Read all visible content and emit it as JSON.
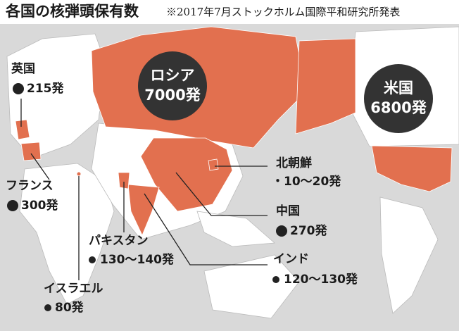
{
  "header": {
    "title": "各国の核弾頭保有数",
    "note": "※2017年7月ストックホルム国際平和研究所発表"
  },
  "countries": [
    {
      "name": "ロシア",
      "count": "7000発"
    },
    {
      "name": "米国",
      "count": "6800発"
    },
    {
      "name": "英国",
      "count": "215発"
    },
    {
      "name": "フランス",
      "count": "300発"
    },
    {
      "name": "北朝鮮",
      "count": "・10～20発"
    },
    {
      "name": "中国",
      "count": "270発"
    },
    {
      "name": "パキスタン",
      "count": "130～140発"
    },
    {
      "name": "インド",
      "count": "120～130発"
    },
    {
      "name": "イスラエル",
      "count": "80発"
    }
  ]
}
